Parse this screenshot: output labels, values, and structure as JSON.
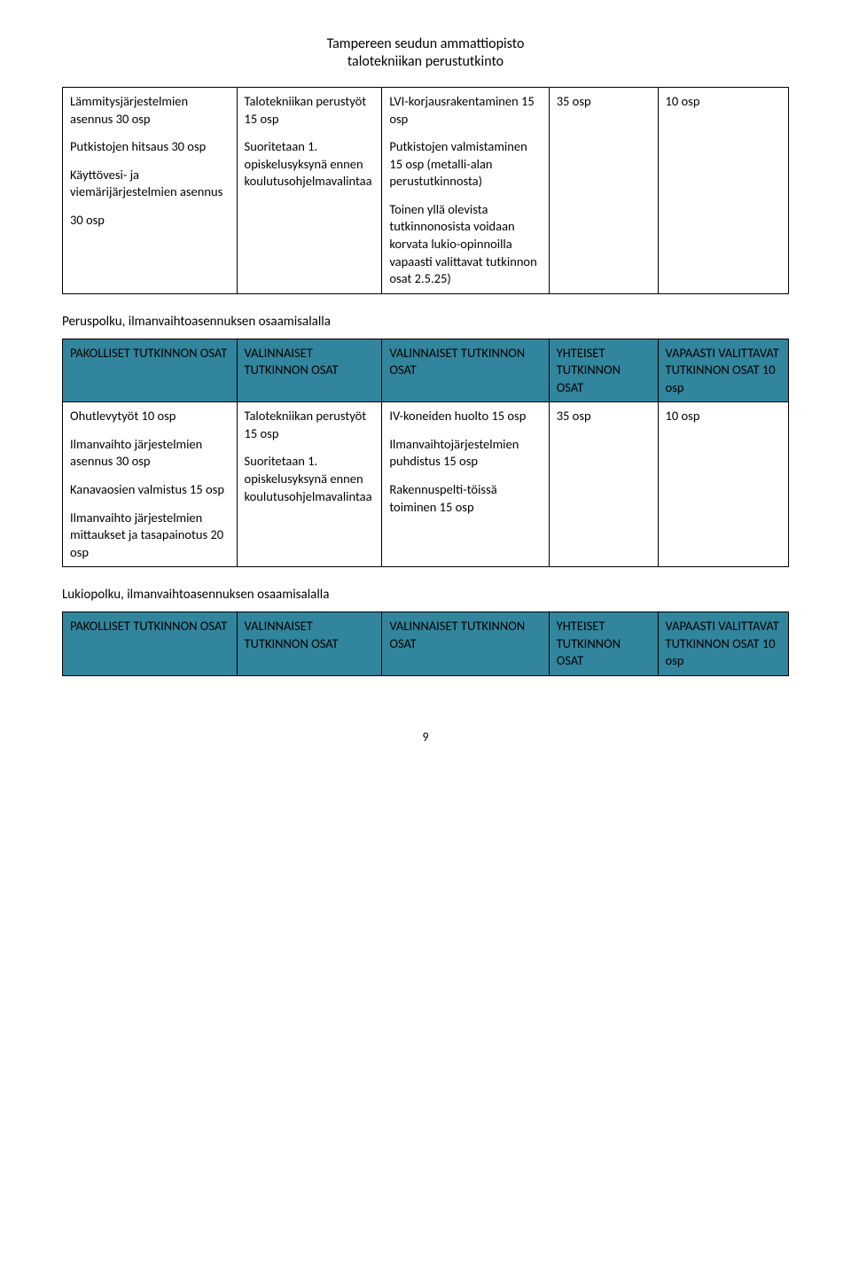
{
  "colors": {
    "header_bg": "#31859c",
    "border": "#000000",
    "page_bg": "#ffffff",
    "text": "#000000"
  },
  "header": {
    "line1": "Tampereen seudun ammattiopisto",
    "line2": "talotekniikan perustutkinto"
  },
  "col_widths_pct": [
    24,
    20,
    23,
    15,
    18
  ],
  "table1": {
    "row": {
      "c1p1": "Lämmitysjärjestelmien asennus 30 osp",
      "c1p2": "Putkistojen hitsaus 30 osp",
      "c1p3": "Käyttövesi- ja viemärijärjestelmien asennus",
      "c1p4": "30 osp",
      "c2p1": "Talotekniikan perustyöt 15 osp",
      "c2p2": "Suoritetaan 1. opiskelusyksynä ennen koulutusohjelmavalintaa",
      "c3p1": "LVI-korjausrakentaminen 15 osp",
      "c3p2": "Putkistojen valmistaminen 15 osp (metalli-alan perustutkinnosta)",
      "c3p3": "Toinen yllä olevista tutkinnonosista voidaan korvata lukio-opinnoilla vapaasti valittavat tutkinnon osat 2.5.25)",
      "c4": "35 osp",
      "c5": "10 osp"
    }
  },
  "section2": {
    "title": "Peruspolku, ilmanvaihtoasennuksen osaamisalalla"
  },
  "table2": {
    "headers": {
      "h1": "PAKOLLISET TUTKINNON OSAT",
      "h2": "VALINNAISET TUTKINNON OSAT",
      "h3": "VALINNAISET TUTKINNON OSAT",
      "h4": "YHTEISET TUTKINNON OSAT",
      "h5": "VAPAASTI VALITTAVAT TUTKINNON OSAT 10 osp"
    },
    "row": {
      "c1p1": "Ohutlevytyöt 10 osp",
      "c1p2": "Ilmanvaihto järjestelmien asennus 30 osp",
      "c1p3": "Kanavaosien valmistus 15 osp",
      "c1p4": "Ilmanvaihto järjestelmien mittaukset ja tasapainotus 20 osp",
      "c2p1": "Talotekniikan perustyöt 15 osp",
      "c2p2": "Suoritetaan 1. opiskelusyksynä ennen koulutusohjelmavalintaa",
      "c3p1": "IV-koneiden huolto 15 osp",
      "c3p2": "Ilmanvaihtojärjestelmien puhdistus 15 osp",
      "c3p3": "Rakennuspelti-töissä toiminen 15 osp",
      "c4": "35 osp",
      "c5": "10 osp"
    }
  },
  "section3": {
    "title": "Lukiopolku, ilmanvaihtoasennuksen osaamisalalla"
  },
  "table3": {
    "headers": {
      "h1": "PAKOLLISET TUTKINNON OSAT",
      "h2": "VALINNAISET TUTKINNON OSAT",
      "h3": "VALINNAISET TUTKINNON OSAT",
      "h4": "YHTEISET TUTKINNON OSAT",
      "h5": "VAPAASTI VALITTAVAT TUTKINNON OSAT 10 osp"
    }
  },
  "page_number": "9"
}
